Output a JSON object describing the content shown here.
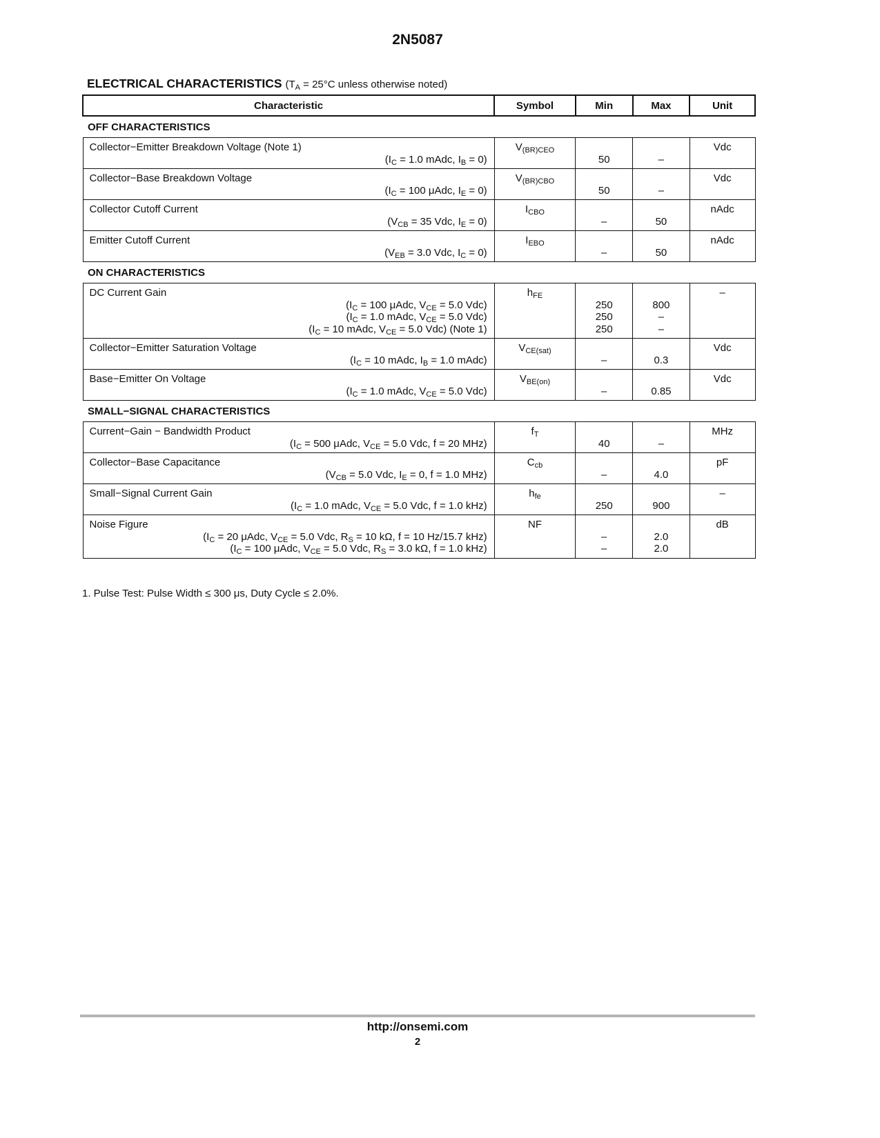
{
  "header": {
    "title": "2N5087"
  },
  "section_title": {
    "main": "ELECTRICAL CHARACTERISTICS",
    "condition": "(T_{A} = 25°C unless otherwise noted)"
  },
  "columns": [
    "Characteristic",
    "Symbol",
    "Min",
    "Max",
    "Unit"
  ],
  "sections": [
    {
      "title": "OFF CHARACTERISTICS",
      "rows": [
        {
          "name": "Collector−Emitter Breakdown Voltage (Note 1)",
          "conds": [
            "(I_{C} = 1.0 mAdc, I_{B} = 0)"
          ],
          "symbol": "V_{(BR)CEO}",
          "min": [
            "50"
          ],
          "max": [
            "–"
          ],
          "unit": "Vdc"
        },
        {
          "name": "Collector−Base Breakdown Voltage",
          "conds": [
            "(I_{C} = 100 μAdc, I_{E} = 0)"
          ],
          "symbol": "V_{(BR)CBO}",
          "min": [
            "50"
          ],
          "max": [
            "–"
          ],
          "unit": "Vdc"
        },
        {
          "name": "Collector Cutoff Current",
          "conds": [
            "(V_{CB} = 35 Vdc, I_{E} = 0)"
          ],
          "symbol": "I_{CBO}",
          "min": [
            "–"
          ],
          "max": [
            "50"
          ],
          "unit": "nAdc"
        },
        {
          "name": "Emitter Cutoff Current",
          "conds": [
            "(V_{EB} = 3.0 Vdc, I_{C} = 0)"
          ],
          "symbol": "I_{EBO}",
          "min": [
            "–"
          ],
          "max": [
            "50"
          ],
          "unit": "nAdc"
        }
      ]
    },
    {
      "title": "ON CHARACTERISTICS",
      "rows": [
        {
          "name": "DC Current Gain",
          "conds": [
            "(I_{C} = 100 μAdc, V_{CE} = 5.0 Vdc)",
            "(I_{C} = 1.0 mAdc, V_{CE} = 5.0 Vdc)",
            "(I_{C} = 10 mAdc, V_{CE} = 5.0 Vdc) (Note 1)"
          ],
          "symbol": "h_{FE}",
          "min": [
            "250",
            "250",
            "250"
          ],
          "max": [
            "800",
            "–",
            "–"
          ],
          "unit": "–"
        },
        {
          "name": "Collector−Emitter Saturation Voltage",
          "conds": [
            "(I_{C} = 10 mAdc, I_{B} = 1.0 mAdc)"
          ],
          "symbol": "V_{CE(sat)}",
          "min": [
            "–"
          ],
          "max": [
            "0.3"
          ],
          "unit": "Vdc"
        },
        {
          "name": "Base−Emitter On Voltage",
          "conds": [
            "(I_{C} = 1.0 mAdc, V_{CE} = 5.0 Vdc)"
          ],
          "symbol": "V_{BE(on)}",
          "min": [
            "–"
          ],
          "max": [
            "0.85"
          ],
          "unit": "Vdc"
        }
      ]
    },
    {
      "title": "SMALL−SIGNAL CHARACTERISTICS",
      "rows": [
        {
          "name": "Current−Gain − Bandwidth Product",
          "conds": [
            "(I_{C} = 500 μAdc, V_{CE} = 5.0 Vdc, f = 20 MHz)"
          ],
          "symbol": "f_{T}",
          "min": [
            "40"
          ],
          "max": [
            "–"
          ],
          "unit": "MHz"
        },
        {
          "name": "Collector−Base Capacitance",
          "conds": [
            "(V_{CB} = 5.0 Vdc, I_{E} = 0, f = 1.0 MHz)"
          ],
          "symbol": "C_{cb}",
          "min": [
            "–"
          ],
          "max": [
            "4.0"
          ],
          "unit": "pF"
        },
        {
          "name": "Small−Signal Current Gain",
          "conds": [
            "(I_{C} = 1.0 mAdc, V_{CE} = 5.0 Vdc, f = 1.0 kHz)"
          ],
          "symbol": "h_{fe}",
          "min": [
            "250"
          ],
          "max": [
            "900"
          ],
          "unit": "–"
        },
        {
          "name": "Noise Figure",
          "conds": [
            "(I_{C} = 20 μAdc, V_{CE} = 5.0 Vdc, R_{S} = 10 kΩ, f = 10 Hz/15.7 kHz)",
            "(I_{C} = 100 μAdc, V_{CE} = 5.0 Vdc, R_{S} = 3.0 kΩ, f = 1.0 kHz)"
          ],
          "symbol": "NF",
          "min": [
            "–",
            "–"
          ],
          "max": [
            "2.0",
            "2.0"
          ],
          "unit": "dB"
        }
      ]
    }
  ],
  "footnote": "1.  Pulse Test: Pulse Width ≤ 300 μs, Duty Cycle ≤ 2.0%.",
  "footer": {
    "url": "http://onsemi.com",
    "page": "2"
  }
}
